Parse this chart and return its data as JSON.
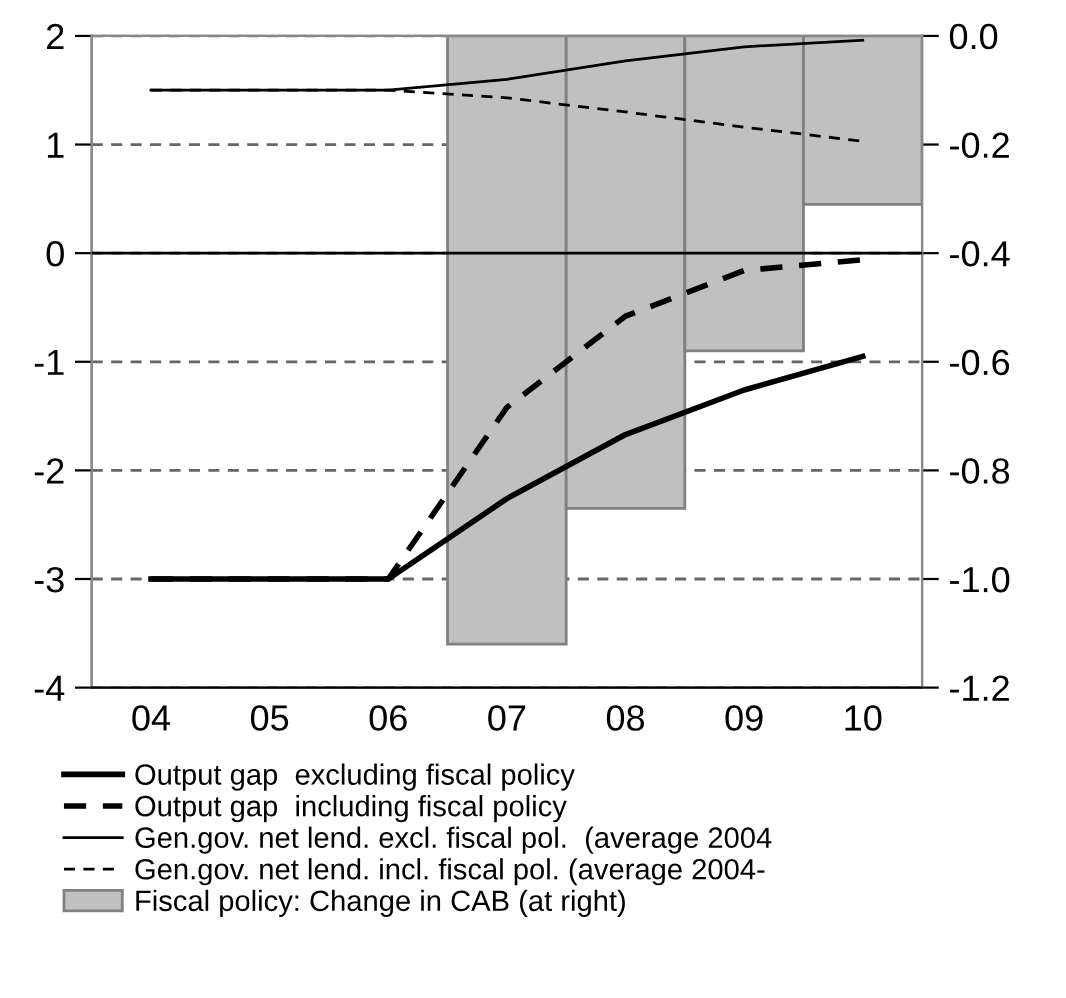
{
  "chart_data": {
    "type": "line",
    "categories": [
      "04",
      "05",
      "06",
      "07",
      "08",
      "09",
      "10"
    ],
    "series": [
      {
        "name": "Fiscal policy: Change in CAB (at right)",
        "type": "bar",
        "axis": "y2",
        "color": "#c0c0c0",
        "values": [
          null,
          null,
          null,
          -1.12,
          -0.87,
          -0.58,
          -0.31
        ]
      },
      {
        "name": "Output gap  excluding fiscal policy",
        "color": "#000000",
        "line_style": "solid",
        "values": [
          -3,
          -3,
          -3,
          -2.26,
          -1.67,
          -1.26,
          -0.95
        ]
      },
      {
        "name": "Output gap  including fiscal policy",
        "color": "#000000",
        "line_style": "dashed",
        "values": [
          -3,
          -3,
          -3,
          -1.42,
          -0.58,
          -0.16,
          -0.06
        ]
      },
      {
        "name": "Gen.gov. net lend. excl. fiscal pol.  (average 2004",
        "color": "#000000",
        "line_style": "solid",
        "values": [
          1.5,
          1.5,
          1.5,
          1.6,
          1.77,
          1.9,
          1.96
        ]
      },
      {
        "name": "Gen.gov. net lend. incl. fiscal pol. (average 2004-",
        "color": "#000000",
        "line_style": "dashed",
        "values": [
          1.5,
          1.5,
          1.5,
          1.43,
          1.3,
          1.16,
          1.03
        ]
      }
    ],
    "ylim": [
      -4,
      2
    ],
    "yticks": [
      -4,
      -3,
      -2,
      -1,
      0,
      1,
      2
    ],
    "y2lim": [
      -1.2,
      0.0
    ],
    "y2ticks": [
      {
        "value": -1.2,
        "label": "-1.2"
      },
      {
        "value": -1.0,
        "label": "-1.0"
      },
      {
        "value": -0.8,
        "label": "-0.8"
      },
      {
        "value": -0.6,
        "label": "-0.6"
      },
      {
        "value": -0.4,
        "label": "-0.4"
      },
      {
        "value": -0.2,
        "label": "-0.2"
      },
      {
        "value": 0.0,
        "label": "0.0"
      }
    ],
    "ref_lines": [
      {
        "axis": "y",
        "value": 0,
        "label": null,
        "color": "#000000",
        "line_style": "solid"
      }
    ],
    "grid": "y",
    "legend": "bottom"
  }
}
